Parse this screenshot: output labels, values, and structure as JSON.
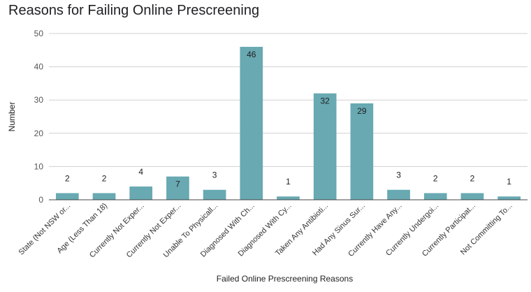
{
  "chart_data": {
    "type": "bar",
    "title": "Reasons for Failing Online Prescreening",
    "xlabel": "Failed Online Prescreening Reasons",
    "ylabel": "Number",
    "ylim": [
      0,
      50
    ],
    "yticks": [
      0,
      10,
      20,
      30,
      40,
      50
    ],
    "grid": true,
    "legend": "none",
    "bar_color": "#68a9b2",
    "categories": [
      "State (Not NSW or...",
      "Age (Less Than 18)",
      "Currently Not Exper...",
      "Currently Not Exper...",
      "Unable To Physicall...",
      "Diagnosed With Ch...",
      "Diagnosed With Cy...",
      "Taken Any Antibioti...",
      "Had Any Sinus Sur...",
      "Currently Have Any...",
      "Currently Undergoi...",
      "Currently Participat...",
      "Not Committing To..."
    ],
    "values": [
      2,
      2,
      4,
      7,
      3,
      46,
      1,
      32,
      29,
      3,
      2,
      2,
      1
    ]
  }
}
